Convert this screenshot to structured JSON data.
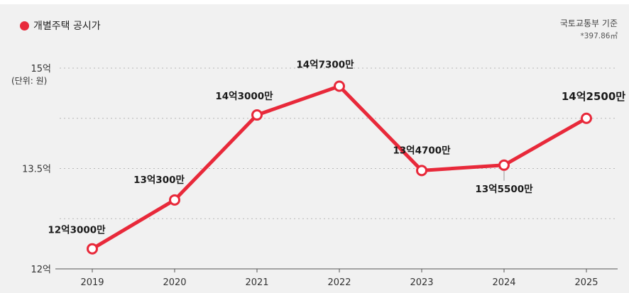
{
  "legend": {
    "label": "개별주택 공시가",
    "color": "#e8293a"
  },
  "source": {
    "line1": "국토교통부 기준",
    "line2": "*397.86㎡"
  },
  "unit_label": "(단위: 원)",
  "chart_data": {
    "type": "line",
    "x": [
      "2019",
      "2020",
      "2021",
      "2022",
      "2023",
      "2024",
      "2025"
    ],
    "series": [
      {
        "name": "개별주택 공시가",
        "values": [
          1230000000,
          1303000000,
          1430000000,
          1473000000,
          1347000000,
          1355000000,
          1425000000
        ],
        "labels": [
          "12억3000만",
          "13억300만",
          "14억3000만",
          "14억7300만",
          "13억4700만",
          "13억5500만",
          "14억2500만"
        ],
        "label_positions": [
          "above",
          "above",
          "above",
          "above",
          "above",
          "below",
          "above"
        ]
      }
    ],
    "yticks": [
      {
        "value": 1200000000,
        "label": "12억"
      },
      {
        "value": 1350000000,
        "label": "13.5억"
      },
      {
        "value": 1500000000,
        "label": "15억"
      }
    ],
    "ylim": [
      1200000000,
      1500000000
    ],
    "grid": true,
    "line_color": "#e8293a"
  }
}
